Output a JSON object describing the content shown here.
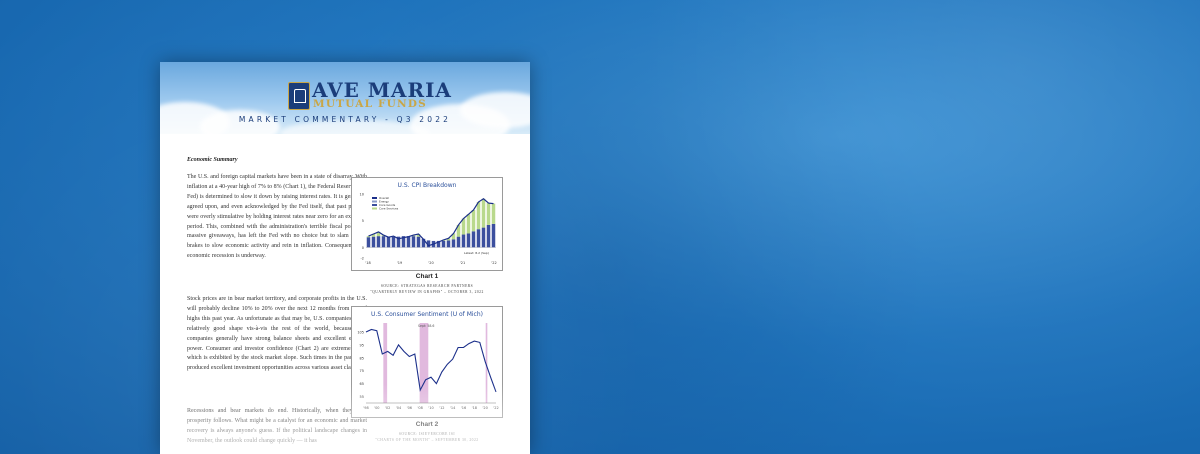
{
  "header": {
    "brand_line1": "AVE MARIA",
    "brand_line2": "MUTUAL FUNDS",
    "subtitle": "MARKET COMMENTARY - Q3 2022"
  },
  "article": {
    "section_title": "Economic Summary",
    "paragraphs": [
      "The U.S. and foreign capital markets have been in a state of disarray. With inflation at a 40-year high of 7% to 8% (Chart 1), the Federal Reserve (the Fed) is determined to slow it down by raising interest rates. It is generally agreed upon, and even acknowledged by the Fed itself, that past policies were overly stimulative by holding interest rates near zero for an extended period. This, combined with the administration's terrible fiscal policy of massive giveaways, has left the Fed with no choice but to slam on the brakes to slow economic activity and rein in inflation. Consequently, an economic recession is underway.",
      "Stock prices are in bear market territory, and corporate profits in the U.S. will probably decline 10% to 20% over the next 12 months from record highs this past year. As unfortunate as that may be, U.S. companies are in relatively good shape vis-à-vis the rest of the world, because U.S. companies generally have strong balance sheets and excellent earning power. Consumer and investor confidence (Chart 2) are extremely low which is exhibited by the stock market slope. Such times in the past have produced excellent investment opportunities across various asset classes.",
      "Recessions and bear markets do end. Historically, when they end, prosperity follows. What might be a catalyst for an economic and market recovery is always anyone's guess. If the political landscape changes in November, the outlook could change quickly — it has"
    ]
  },
  "figures": [
    {
      "title": "U.S. CPI Breakdown",
      "caption": "Chart 1",
      "source_line1": "SOURCE: STRATEGAS RESEARCH PARTNERS",
      "source_line2": "\"QUARTERLY REVIEW IN GRAPHS\" – OCTOBER 3, 2022",
      "legend": [
        "Overall",
        "Energy",
        "Core Goods",
        "Core Services"
      ],
      "colors": {
        "overall": "#1b2f8a",
        "energy": "#8a9bc9",
        "goods": "#3c4f9e",
        "services": "#b9d98c"
      },
      "chart_data": {
        "type": "bar",
        "title": "U.S. CPI Breakdown",
        "ylim": [
          -2,
          10
        ],
        "y_ticks": [
          "10",
          "5",
          "0",
          "-2"
        ],
        "x_ticks": [
          "'18",
          "'19",
          "'20",
          "'21",
          "'22"
        ],
        "series": [
          {
            "name": "Overall",
            "values": [
              2.1,
              2.5,
              2.9,
              2.3,
              1.9,
              2.1,
              1.6,
              1.8,
              2.0,
              2.3,
              2.5,
              1.5,
              0.3,
              0.6,
              1.0,
              1.4,
              1.7,
              2.6,
              4.2,
              5.4,
              6.2,
              7.0,
              8.5,
              9.1,
              8.3,
              8.2
            ]
          },
          {
            "name": "Core Services",
            "values": [
              1.9,
              2.0,
              2.1,
              2.1,
              2.0,
              2.0,
              2.0,
              2.1,
              2.1,
              2.1,
              2.0,
              1.6,
              1.3,
              1.2,
              1.2,
              1.2,
              1.3,
              1.5,
              2.0,
              2.4,
              2.6,
              3.0,
              3.4,
              3.7,
              4.2,
              4.4
            ]
          }
        ],
        "annotation": "Latest: 8.2 (Sep)"
      }
    },
    {
      "title": "U.S. Consumer Sentiment (U of Mich)",
      "caption": "Chart 2",
      "source_line1": "SOURCE: ISIEVERCORE ISI",
      "source_line2": "\"CHARTS OF THE MONTH\" – SEPTEMBER 30, 2022",
      "chart_data": {
        "type": "line",
        "title": "U.S. Consumer Sentiment (U of Mich)",
        "annotation": "Sept: 58.6",
        "x_ticks": [
          "'98",
          "'00",
          "'02",
          "'04",
          "'06",
          "'08",
          "'10",
          "'12",
          "'14",
          "'16",
          "'18",
          "'20",
          "'22"
        ],
        "y_ticks": [
          "105",
          "95",
          "85",
          "75",
          "65",
          "55"
        ],
        "ylim": [
          50,
          112
        ],
        "x": [
          1998,
          1999,
          2000,
          2001,
          2002,
          2003,
          2004,
          2005,
          2006,
          2007,
          2008,
          2009,
          2010,
          2011,
          2012,
          2013,
          2014,
          2015,
          2016,
          2017,
          2018,
          2019,
          2020,
          2021,
          2022
        ],
        "values": [
          105,
          107,
          106,
          88,
          90,
          87,
          95,
          90,
          86,
          88,
          60,
          68,
          70,
          65,
          74,
          80,
          84,
          93,
          93,
          96,
          98,
          97,
          82,
          70,
          58.6
        ],
        "recessions": [
          [
            2001.2,
            2001.9
          ],
          [
            2007.9,
            2009.5
          ],
          [
            2020.1,
            2020.4
          ]
        ]
      }
    }
  ]
}
